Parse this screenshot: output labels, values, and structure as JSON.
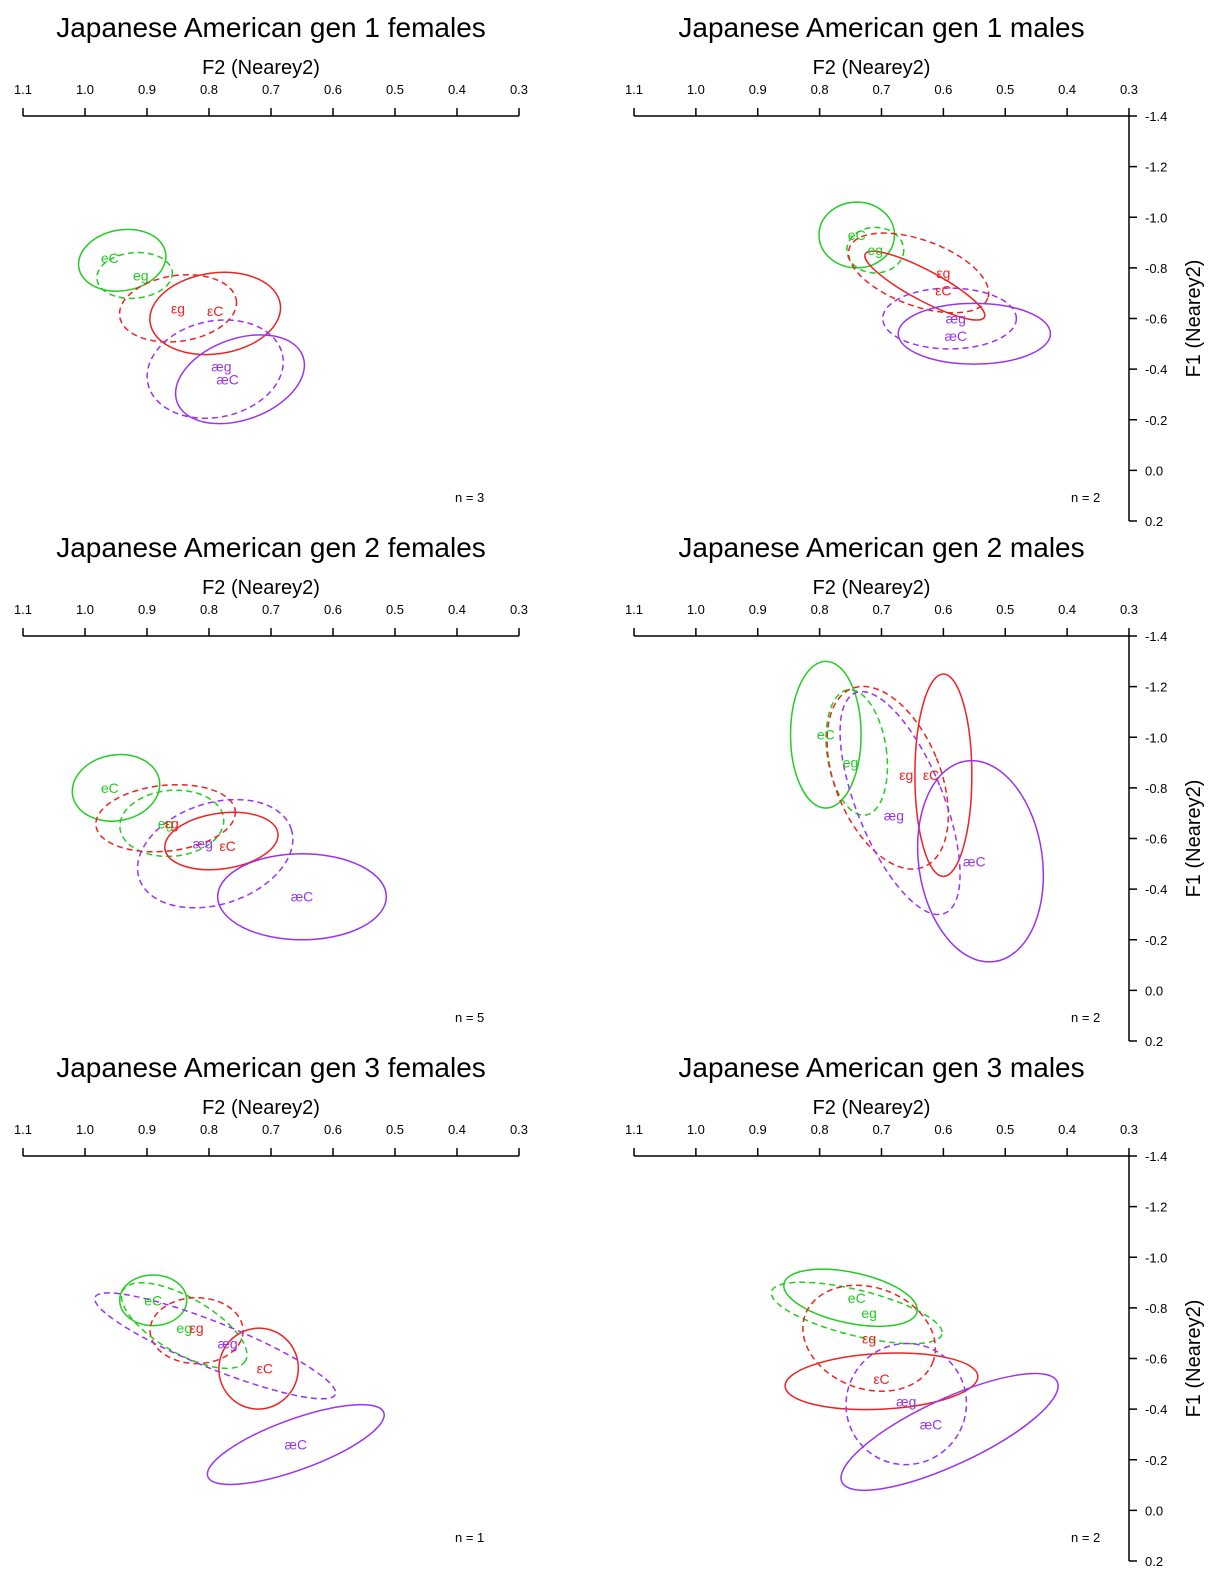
{
  "figure": {
    "title": ""
  },
  "colors": {
    "e": "#22cc22",
    "eps": "#ee2222",
    "ae": "#9933ee",
    "axis": "#000000"
  },
  "chart_data": [
    {
      "type": "scatter",
      "title": "Japanese American gen 1 females",
      "xlabel": "F2 (Nearey2)",
      "ylabel": "",
      "xlim": [
        1.1,
        0.3
      ],
      "ylim": [
        -1.4,
        0.2
      ],
      "xticks": [
        "1.1",
        "1.0",
        "0.9",
        "0.8",
        "0.7",
        "0.6",
        "0.5",
        "0.4",
        "0.3"
      ],
      "yticks": [],
      "note": "n = 3",
      "ellipses": [
        {
          "label": "eC",
          "color": "green",
          "style": "solid",
          "cx": 0.94,
          "cy": -0.83,
          "rx": 0.071,
          "ry": 0.12,
          "angle": -10
        },
        {
          "label": "eg",
          "color": "green",
          "style": "dashed",
          "cx": 0.92,
          "cy": -0.77,
          "rx": 0.061,
          "ry": 0.09,
          "angle": -5
        },
        {
          "label": "εg",
          "color": "red",
          "style": "dashed",
          "cx": 0.85,
          "cy": -0.64,
          "rx": 0.095,
          "ry": 0.13,
          "angle": -8
        },
        {
          "label": "εC",
          "color": "red",
          "style": "solid",
          "cx": 0.79,
          "cy": -0.62,
          "rx": 0.106,
          "ry": 0.16,
          "angle": -8
        },
        {
          "label": "æg",
          "color": "purple",
          "style": "dashed",
          "cx": 0.79,
          "cy": -0.4,
          "rx": 0.111,
          "ry": 0.19,
          "angle": -12
        },
        {
          "label": "æC",
          "color": "purple",
          "style": "solid",
          "cx": 0.75,
          "cy": -0.36,
          "rx": 0.108,
          "ry": 0.16,
          "angle": -20
        }
      ],
      "labels": [
        {
          "text": "eC",
          "color": "green",
          "x": 0.96,
          "y": -0.84
        },
        {
          "text": "eg",
          "color": "green",
          "x": 0.91,
          "y": -0.77
        },
        {
          "text": "εg",
          "color": "red",
          "x": 0.85,
          "y": -0.64
        },
        {
          "text": "εC",
          "color": "red",
          "x": 0.79,
          "y": -0.63
        },
        {
          "text": "æg",
          "color": "purple",
          "x": 0.78,
          "y": -0.41
        },
        {
          "text": "æC",
          "color": "purple",
          "x": 0.77,
          "y": -0.36
        }
      ]
    },
    {
      "type": "scatter",
      "title": "Japanese American gen 1 males",
      "xlabel": "F2 (Nearey2)",
      "ylabel": "F1 (Nearey2)",
      "xlim": [
        1.1,
        0.3
      ],
      "ylim": [
        -1.4,
        0.2
      ],
      "xticks": [
        "1.1",
        "1.0",
        "0.9",
        "0.8",
        "0.7",
        "0.6",
        "0.5",
        "0.4",
        "0.3"
      ],
      "yticks": [
        "-1.4",
        "-1.2",
        "-1.0",
        "-0.8",
        "-0.6",
        "-0.4",
        "-0.2",
        "0.0",
        "0.2"
      ],
      "note": "n = 2",
      "ellipses": [
        {
          "label": "eC",
          "color": "green",
          "style": "solid",
          "cx": 0.74,
          "cy": -0.93,
          "rx": 0.061,
          "ry": 0.13,
          "angle": 0
        },
        {
          "label": "eg",
          "color": "green",
          "style": "dashed",
          "cx": 0.71,
          "cy": -0.87,
          "rx": 0.046,
          "ry": 0.09,
          "angle": 0
        },
        {
          "label": "εg",
          "color": "red",
          "style": "dashed",
          "cx": 0.64,
          "cy": -0.78,
          "rx": 0.119,
          "ry": 0.13,
          "angle": 20
        },
        {
          "label": "εC",
          "color": "red",
          "style": "solid",
          "cx": 0.63,
          "cy": -0.73,
          "rx": 0.109,
          "ry": 0.06,
          "angle": 28
        },
        {
          "label": "æg",
          "color": "purple",
          "style": "dashed",
          "cx": 0.59,
          "cy": -0.6,
          "rx": 0.108,
          "ry": 0.12,
          "angle": 0
        },
        {
          "label": "æC",
          "color": "purple",
          "style": "solid",
          "cx": 0.55,
          "cy": -0.54,
          "rx": 0.123,
          "ry": 0.12,
          "angle": 0
        }
      ],
      "labels": [
        {
          "text": "eC",
          "color": "green",
          "x": 0.74,
          "y": -0.93
        },
        {
          "text": "eg",
          "color": "green",
          "x": 0.71,
          "y": -0.87
        },
        {
          "text": "εg",
          "color": "red",
          "x": 0.6,
          "y": -0.78
        },
        {
          "text": "εC",
          "color": "red",
          "x": 0.6,
          "y": -0.71
        },
        {
          "text": "æg",
          "color": "purple",
          "x": 0.58,
          "y": -0.6
        },
        {
          "text": "æC",
          "color": "purple",
          "x": 0.58,
          "y": -0.53
        }
      ]
    },
    {
      "type": "scatter",
      "title": "Japanese American gen 2 females",
      "xlabel": "F2 (Nearey2)",
      "ylabel": "",
      "xlim": [
        1.1,
        0.3
      ],
      "ylim": [
        -1.4,
        0.2
      ],
      "xticks": [
        "1.1",
        "1.0",
        "0.9",
        "0.8",
        "0.7",
        "0.6",
        "0.5",
        "0.4",
        "0.3"
      ],
      "yticks": [],
      "note": "n = 5",
      "ellipses": [
        {
          "label": "eC",
          "color": "green",
          "style": "solid",
          "cx": 0.95,
          "cy": -0.8,
          "rx": 0.071,
          "ry": 0.13,
          "angle": -10
        },
        {
          "label": "eg",
          "color": "green",
          "style": "dashed",
          "cx": 0.86,
          "cy": -0.66,
          "rx": 0.084,
          "ry": 0.13,
          "angle": -5
        },
        {
          "label": "εg",
          "color": "red",
          "style": "dashed",
          "cx": 0.87,
          "cy": -0.68,
          "rx": 0.113,
          "ry": 0.13,
          "angle": -6
        },
        {
          "label": "εC",
          "color": "red",
          "style": "solid",
          "cx": 0.78,
          "cy": -0.59,
          "rx": 0.092,
          "ry": 0.11,
          "angle": -8
        },
        {
          "label": "æg",
          "color": "purple",
          "style": "dashed",
          "cx": 0.79,
          "cy": -0.54,
          "rx": 0.129,
          "ry": 0.2,
          "angle": -18
        },
        {
          "label": "æC",
          "color": "purple",
          "style": "solid",
          "cx": 0.65,
          "cy": -0.37,
          "rx": 0.136,
          "ry": 0.17,
          "angle": 0
        }
      ],
      "labels": [
        {
          "text": "eC",
          "color": "green",
          "x": 0.96,
          "y": -0.8
        },
        {
          "text": "eg",
          "color": "green",
          "x": 0.87,
          "y": -0.66
        },
        {
          "text": "εg",
          "color": "red",
          "x": 0.86,
          "y": -0.66
        },
        {
          "text": "εC",
          "color": "red",
          "x": 0.77,
          "y": -0.57
        },
        {
          "text": "æg",
          "color": "purple",
          "x": 0.81,
          "y": -0.58
        },
        {
          "text": "æC",
          "color": "purple",
          "x": 0.65,
          "y": -0.37
        }
      ]
    },
    {
      "type": "scatter",
      "title": "Japanese American gen 2 males",
      "xlabel": "F2 (Nearey2)",
      "ylabel": "F1 (Nearey2)",
      "xlim": [
        1.1,
        0.3
      ],
      "ylim": [
        -1.4,
        0.2
      ],
      "xticks": [
        "1.1",
        "1.0",
        "0.9",
        "0.8",
        "0.7",
        "0.6",
        "0.5",
        "0.4",
        "0.3"
      ],
      "yticks": [
        "-1.4",
        "-1.2",
        "-1.0",
        "-0.8",
        "-0.6",
        "-0.4",
        "-0.2",
        "0.0",
        "0.2"
      ],
      "note": "n = 2",
      "ellipses": [
        {
          "label": "eC",
          "color": "green",
          "style": "solid",
          "cx": 0.79,
          "cy": -1.01,
          "rx": 0.057,
          "ry": 0.29,
          "angle": 0
        },
        {
          "label": "eg",
          "color": "green",
          "style": "dashed",
          "cx": 0.74,
          "cy": -0.94,
          "rx": 0.048,
          "ry": 0.25,
          "angle": -8
        },
        {
          "label": "εg",
          "color": "red",
          "style": "dashed",
          "cx": 0.69,
          "cy": -0.84,
          "rx": 0.085,
          "ry": 0.38,
          "angle": -22
        },
        {
          "label": "εC",
          "color": "red",
          "style": "solid",
          "cx": 0.6,
          "cy": -0.85,
          "rx": 0.046,
          "ry": 0.4,
          "angle": 0
        },
        {
          "label": "æg",
          "color": "purple",
          "style": "dashed",
          "cx": 0.67,
          "cy": -0.74,
          "rx": 0.07,
          "ry": 0.47,
          "angle": -22
        },
        {
          "label": "æC",
          "color": "purple",
          "style": "solid",
          "cx": 0.54,
          "cy": -0.51,
          "rx": 0.1,
          "ry": 0.4,
          "angle": -8
        }
      ],
      "labels": [
        {
          "text": "eC",
          "color": "green",
          "x": 0.79,
          "y": -1.01
        },
        {
          "text": "eg",
          "color": "green",
          "x": 0.75,
          "y": -0.9
        },
        {
          "text": "εg",
          "color": "red",
          "x": 0.66,
          "y": -0.85
        },
        {
          "text": "εC",
          "color": "red",
          "x": 0.62,
          "y": -0.85
        },
        {
          "text": "æg",
          "color": "purple",
          "x": 0.68,
          "y": -0.69
        },
        {
          "text": "æC",
          "color": "purple",
          "x": 0.55,
          "y": -0.51
        }
      ]
    },
    {
      "type": "scatter",
      "title": "Japanese American gen 3 females",
      "xlabel": "F2 (Nearey2)",
      "ylabel": "",
      "xlim": [
        1.1,
        0.3
      ],
      "ylim": [
        -1.4,
        0.2
      ],
      "xticks": [
        "1.1",
        "1.0",
        "0.9",
        "0.8",
        "0.7",
        "0.6",
        "0.5",
        "0.4",
        "0.3"
      ],
      "yticks": [],
      "note": "n = 1",
      "ellipses": [
        {
          "label": "eC",
          "color": "green",
          "style": "solid",
          "cx": 0.89,
          "cy": -0.83,
          "rx": 0.054,
          "ry": 0.1,
          "angle": 0
        },
        {
          "label": "eg",
          "color": "green",
          "style": "dashed",
          "cx": 0.84,
          "cy": -0.73,
          "rx": 0.114,
          "ry": 0.11,
          "angle": 30
        },
        {
          "label": "εg",
          "color": "red",
          "style": "dashed",
          "cx": 0.82,
          "cy": -0.71,
          "rx": 0.075,
          "ry": 0.13,
          "angle": 0
        },
        {
          "label": "εC",
          "color": "red",
          "style": "solid",
          "cx": 0.72,
          "cy": -0.56,
          "rx": 0.064,
          "ry": 0.16,
          "angle": 15
        },
        {
          "label": "æg",
          "color": "purple",
          "style": "dashed",
          "cx": 0.79,
          "cy": -0.65,
          "rx": 0.209,
          "ry": 0.09,
          "angle": 22
        },
        {
          "label": "æC",
          "color": "purple",
          "style": "solid",
          "cx": 0.66,
          "cy": -0.26,
          "rx": 0.151,
          "ry": 0.1,
          "angle": -20
        }
      ],
      "labels": [
        {
          "text": "eC",
          "color": "green",
          "x": 0.89,
          "y": -0.83
        },
        {
          "text": "eg",
          "color": "green",
          "x": 0.84,
          "y": -0.72
        },
        {
          "text": "εg",
          "color": "red",
          "x": 0.82,
          "y": -0.72
        },
        {
          "text": "εC",
          "color": "red",
          "x": 0.71,
          "y": -0.56
        },
        {
          "text": "æg",
          "color": "purple",
          "x": 0.77,
          "y": -0.66
        },
        {
          "text": "æC",
          "color": "purple",
          "x": 0.66,
          "y": -0.26
        }
      ]
    },
    {
      "type": "scatter",
      "title": "Japanese American gen 3 males",
      "xlabel": "F2 (Nearey2)",
      "ylabel": "F1 (Nearey2)",
      "xlim": [
        1.1,
        0.3
      ],
      "ylim": [
        -1.4,
        0.2
      ],
      "xticks": [
        "1.1",
        "1.0",
        "0.9",
        "0.8",
        "0.7",
        "0.6",
        "0.5",
        "0.4",
        "0.3"
      ],
      "yticks": [
        "-1.4",
        "-1.2",
        "-1.0",
        "-0.8",
        "-0.6",
        "-0.4",
        "-0.2",
        "0.0",
        "0.2"
      ],
      "note": "n = 2",
      "ellipses": [
        {
          "label": "eC",
          "color": "green",
          "style": "solid",
          "cx": 0.75,
          "cy": -0.84,
          "rx": 0.11,
          "ry": 0.1,
          "angle": 12
        },
        {
          "label": "eg",
          "color": "green",
          "style": "dashed",
          "cx": 0.74,
          "cy": -0.78,
          "rx": 0.142,
          "ry": 0.09,
          "angle": 14
        },
        {
          "label": "εg",
          "color": "red",
          "style": "dashed",
          "cx": 0.72,
          "cy": -0.68,
          "rx": 0.11,
          "ry": 0.2,
          "angle": 20
        },
        {
          "label": "εC",
          "color": "red",
          "style": "solid",
          "cx": 0.7,
          "cy": -0.51,
          "rx": 0.156,
          "ry": 0.11,
          "angle": -3
        },
        {
          "label": "æg",
          "color": "purple",
          "style": "dashed",
          "cx": 0.66,
          "cy": -0.42,
          "rx": 0.097,
          "ry": 0.24,
          "angle": 30
        },
        {
          "label": "æC",
          "color": "purple",
          "style": "solid",
          "cx": 0.59,
          "cy": -0.31,
          "rx": 0.192,
          "ry": 0.13,
          "angle": -25
        }
      ],
      "labels": [
        {
          "text": "eC",
          "color": "green",
          "x": 0.74,
          "y": -0.84
        },
        {
          "text": "eg",
          "color": "green",
          "x": 0.72,
          "y": -0.78
        },
        {
          "text": "εg",
          "color": "red",
          "x": 0.72,
          "y": -0.68
        },
        {
          "text": "εC",
          "color": "red",
          "x": 0.7,
          "y": -0.52
        },
        {
          "text": "æg",
          "color": "purple",
          "x": 0.66,
          "y": -0.43
        },
        {
          "text": "æC",
          "color": "purple",
          "x": 0.62,
          "y": -0.34
        }
      ]
    }
  ]
}
